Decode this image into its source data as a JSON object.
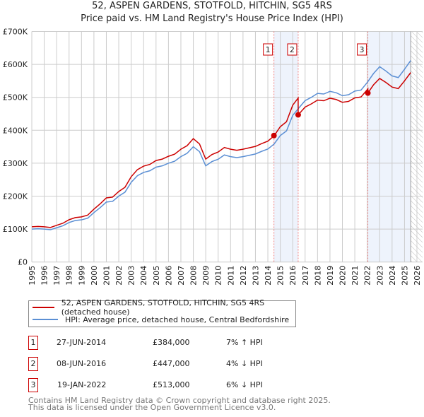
{
  "header": {
    "title": "52, ASPEN GARDENS, STOTFOLD, HITCHIN, SG5 4RS",
    "subtitle": "Price paid vs. HM Land Registry's House Price Index (HPI)"
  },
  "chart_data": {
    "type": "line",
    "title": "52, ASPEN GARDENS, STOTFOLD, HITCHIN, SG5 4RS",
    "xlim": [
      1995,
      2026
    ],
    "ylim": [
      0,
      700000
    ],
    "x_ticks": [
      "1995",
      "1996",
      "1997",
      "1998",
      "1999",
      "2000",
      "2001",
      "2002",
      "2003",
      "2004",
      "2005",
      "2006",
      "2007",
      "2008",
      "2009",
      "2010",
      "2011",
      "2012",
      "2013",
      "2014",
      "2015",
      "2016",
      "2017",
      "2018",
      "2019",
      "2020",
      "2021",
      "2022",
      "2023",
      "2024",
      "2025",
      "2026"
    ],
    "y_ticks": [
      {
        "v": 0,
        "label": "£0"
      },
      {
        "v": 100000,
        "label": "£100K"
      },
      {
        "v": 200000,
        "label": "£200K"
      },
      {
        "v": 300000,
        "label": "£300K"
      },
      {
        "v": 400000,
        "label": "£400K"
      },
      {
        "v": 500000,
        "label": "£500K"
      },
      {
        "v": 600000,
        "label": "£600K"
      },
      {
        "v": 700000,
        "label": "£700K"
      }
    ],
    "hpi": {
      "name": "HPI: Average price, detached house, Central Bedfordshire",
      "color": "#5b8fd4",
      "x": [
        1995,
        1995.5,
        1996,
        1996.5,
        1997,
        1997.5,
        1998,
        1998.5,
        1999,
        1999.5,
        2000,
        2000.5,
        2001,
        2001.5,
        2002,
        2002.5,
        2003,
        2003.5,
        2004,
        2004.5,
        2005,
        2005.5,
        2006,
        2006.5,
        2007,
        2007.5,
        2008,
        2008.5,
        2009,
        2009.5,
        2010,
        2010.5,
        2011,
        2011.5,
        2012,
        2012.5,
        2013,
        2013.5,
        2014,
        2014.5,
        2015,
        2015.5,
        2016,
        2016.5,
        2017,
        2017.5,
        2018,
        2018.5,
        2019,
        2019.5,
        2020,
        2020.5,
        2021,
        2021.5,
        2022,
        2022.5,
        2023,
        2023.5,
        2024,
        2024.5,
        2025,
        2025.5
      ],
      "y": [
        100000,
        101000,
        100000,
        98000,
        104000,
        110000,
        120000,
        126000,
        128000,
        133000,
        150000,
        165000,
        182000,
        184000,
        200000,
        212000,
        242000,
        262000,
        272000,
        277000,
        288000,
        292000,
        300000,
        306000,
        320000,
        330000,
        350000,
        335000,
        292000,
        305000,
        312000,
        325000,
        320000,
        317000,
        320000,
        324000,
        328000,
        336000,
        343000,
        358000,
        384000,
        398000,
        445000,
        468000,
        490000,
        500000,
        512000,
        510000,
        518000,
        514000,
        505000,
        508000,
        519000,
        522000,
        545000,
        572000,
        593000,
        580000,
        565000,
        560000,
        585000,
        612000
      ]
    },
    "property": {
      "name": "52, ASPEN GARDENS, STOTFOLD, HITCHIN, SG5 4RS (detached house)",
      "color": "#cc0000",
      "ratios": [
        1.07,
        0.96,
        0.94
      ]
    },
    "sales": [
      {
        "id": "1",
        "x": 2014.49,
        "date": "27-JUN-2014",
        "price": 384000,
        "price_label": "£384,000",
        "hpi_label": "7% ↑ HPI"
      },
      {
        "id": "2",
        "x": 2016.44,
        "date": "08-JUN-2016",
        "price": 447000,
        "price_label": "£447,000",
        "hpi_label": "4% ↓ HPI"
      },
      {
        "id": "3",
        "x": 2022.05,
        "date": "19-JAN-2022",
        "price": 513000,
        "price_label": "£513,000",
        "hpi_label": "6% ↓ HPI"
      }
    ],
    "data_end": 2025.5,
    "legend_placement": "below"
  },
  "footer": {
    "line1": "Contains HM Land Registry data © Crown copyright and database right 2025.",
    "line2": "This data is licensed under the Open Government Licence v3.0."
  }
}
